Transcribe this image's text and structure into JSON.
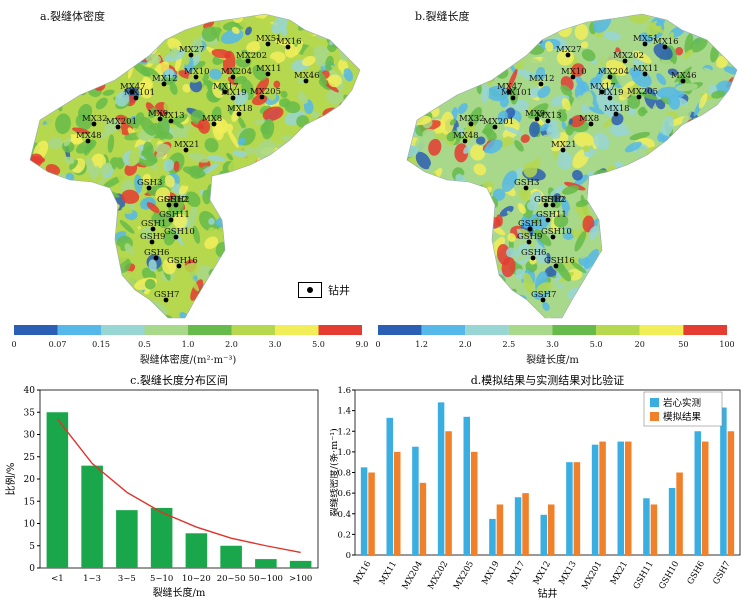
{
  "panel_a": {
    "title": "a.裂缝体密度",
    "colorbar_ticks": [
      "0",
      "0.07",
      "0.15",
      "0.5",
      "1.0",
      "2.0",
      "3.0",
      "5.0",
      "9.0"
    ],
    "colorbar_label": "裂缝体密度/(m²·m⁻³)",
    "colors": [
      "#2b5fb4",
      "#55b8e8",
      "#98d6d4",
      "#a8d88a",
      "#66bb4a",
      "#b5d84e",
      "#f2ee5a",
      "#e43c30"
    ]
  },
  "panel_b": {
    "title": "b.裂缝长度",
    "colorbar_ticks": [
      "0",
      "1.2",
      "2.0",
      "2.5",
      "3.0",
      "5.0",
      "20",
      "50",
      "100"
    ],
    "colorbar_label": "裂缝长度/m",
    "colors": [
      "#2b5fb4",
      "#55b8e8",
      "#98d6d4",
      "#a8d88a",
      "#66bb4a",
      "#b5d84e",
      "#f2ee5a",
      "#e43c30"
    ]
  },
  "well_legend": {
    "label": "钻井",
    "icon": "well-dot-icon"
  },
  "wells": [
    {
      "name": "MX27"
    },
    {
      "name": "MX51"
    },
    {
      "name": "MX16"
    },
    {
      "name": "MX202"
    },
    {
      "name": "MX12"
    },
    {
      "name": "MX10"
    },
    {
      "name": "MX204"
    },
    {
      "name": "MX11"
    },
    {
      "name": "MX46"
    },
    {
      "name": "MX47"
    },
    {
      "name": "MX101"
    },
    {
      "name": "MX19"
    },
    {
      "name": "MX17"
    },
    {
      "name": "MX205"
    },
    {
      "name": "MX18"
    },
    {
      "name": "MX32"
    },
    {
      "name": "MX201"
    },
    {
      "name": "MX9"
    },
    {
      "name": "MX13"
    },
    {
      "name": "MX8"
    },
    {
      "name": "MX48"
    },
    {
      "name": "MX21"
    },
    {
      "name": "GSH3"
    },
    {
      "name": "GSH12"
    },
    {
      "name": "GSH2"
    },
    {
      "name": "GSH11"
    },
    {
      "name": "GSH1"
    },
    {
      "name": "GSH10"
    },
    {
      "name": "GSH9"
    },
    {
      "name": "GSH6"
    },
    {
      "name": "GSH16"
    },
    {
      "name": "GSH7"
    }
  ],
  "chart_data": [
    {
      "id": "c",
      "type": "bar",
      "title": "c.裂缝长度分布区间",
      "xlabel": "裂缝长度/m",
      "ylabel": "比例/%",
      "categories": [
        "<1",
        "1~3",
        "3~5",
        "5~10",
        "10~20",
        "20~50",
        "50~100",
        ">100"
      ],
      "values": [
        35,
        23,
        13,
        13.5,
        7.8,
        5,
        2,
        1.6
      ],
      "ylim": [
        0,
        40
      ],
      "yticks": [
        0,
        5,
        10,
        15,
        20,
        25,
        30,
        35,
        40
      ],
      "bar_color": "#1aa64a",
      "trend_color": "#e0332c",
      "trend_values": [
        33.5,
        23.5,
        17,
        12.5,
        9.2,
        6.7,
        5,
        3.5
      ],
      "grid": false
    },
    {
      "id": "d",
      "type": "bar",
      "title": "d.模拟结果与实测结果对比验证",
      "xlabel": "钻井",
      "ylabel": "裂缝线密度/(条·m⁻¹)",
      "categories": [
        "MX16",
        "MX11",
        "MX204",
        "MX202",
        "MX205",
        "MX19",
        "MX17",
        "MX12",
        "MX13",
        "MX201",
        "MX21",
        "GSH11",
        "GSH10",
        "GSH6",
        "GSH7"
      ],
      "series": [
        {
          "name": "岩心实测",
          "color": "#3aaee0",
          "values": [
            0.85,
            1.33,
            1.05,
            1.48,
            1.34,
            0.35,
            0.56,
            0.39,
            0.9,
            1.07,
            1.1,
            0.55,
            0.65,
            1.2,
            1.43
          ]
        },
        {
          "name": "模拟结果",
          "color": "#f0802a",
          "values": [
            0.8,
            1.0,
            0.7,
            1.2,
            1.0,
            0.49,
            0.6,
            0.49,
            0.9,
            1.1,
            1.1,
            0.49,
            0.8,
            1.1,
            1.2
          ]
        }
      ],
      "ylim": [
        0,
        1.6
      ],
      "yticks": [
        0,
        0.2,
        0.4,
        0.6,
        0.8,
        1.0,
        1.2,
        1.4,
        1.6
      ],
      "legend_position": "top-right",
      "grid": false
    }
  ]
}
